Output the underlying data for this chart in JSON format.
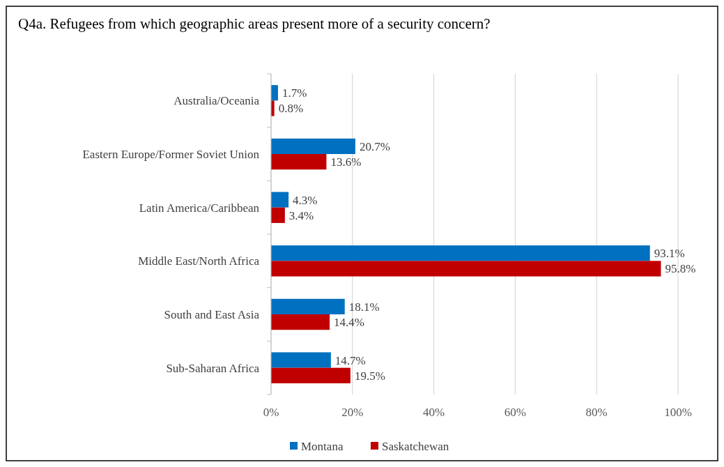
{
  "chart_data": {
    "type": "bar",
    "orientation": "horizontal",
    "title": "Q4a. Refugees from which geographic areas present more of a security concern?",
    "categories": [
      "Australia/Oceania",
      "Eastern Europe/Former Soviet Union",
      "Latin America/Caribbean",
      "Middle East/North Africa",
      "South and East Asia",
      "Sub-Saharan Africa"
    ],
    "series": [
      {
        "name": "Montana",
        "color": "#0070c0",
        "values": [
          1.7,
          20.7,
          4.3,
          93.1,
          18.1,
          14.7
        ],
        "value_labels": [
          "1.7%",
          "20.7%",
          "4.3%",
          "93.1%",
          "18.1%",
          "14.7%"
        ]
      },
      {
        "name": "Saskatchewan",
        "color": "#c00000",
        "values": [
          0.8,
          13.6,
          3.4,
          95.8,
          14.4,
          19.5
        ],
        "value_labels": [
          "0.8%",
          "13.6%",
          "3.4%",
          "95.8%",
          "14.4%",
          "19.5%"
        ]
      }
    ],
    "xlim": [
      0,
      100
    ],
    "xticks": [
      {
        "value": 0,
        "label": "0%"
      },
      {
        "value": 20,
        "label": "20%"
      },
      {
        "value": 40,
        "label": "40%"
      },
      {
        "value": 60,
        "label": "60%"
      },
      {
        "value": 80,
        "label": "80%"
      },
      {
        "value": 100,
        "label": "100%"
      }
    ],
    "grid": "x",
    "legend": "bottom"
  }
}
